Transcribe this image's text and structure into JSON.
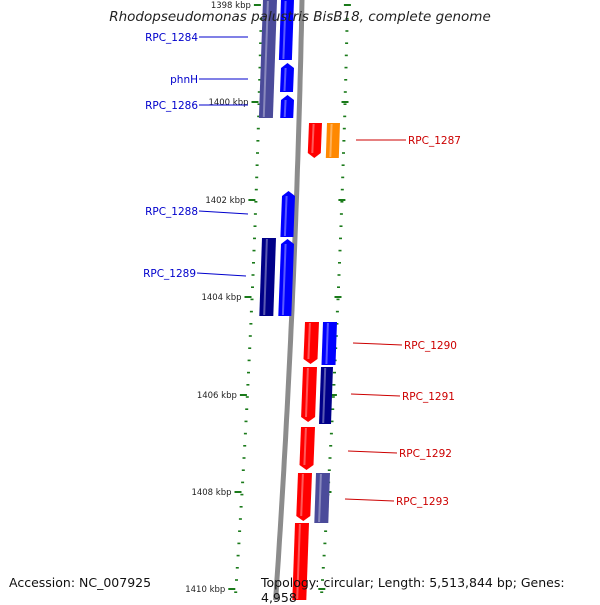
{
  "title": "Rhodopseudomonas palustris BisB18, complete genome",
  "footer": {
    "accession": "Accession: NC_007925",
    "topology": "Topology: circular; Length: 5,513,844 bp; Genes: 4,958"
  },
  "scale_labels": [
    "1398 kbp",
    "1400 kbp",
    "1402 kbp",
    "1404 kbp",
    "1406 kbp",
    "1408 kbp",
    "1410 kbp"
  ],
  "gene_labels": [
    {
      "text": "RPC_1284",
      "color": "#0000cc"
    },
    {
      "text": "phnH",
      "color": "#0000cc"
    },
    {
      "text": "RPC_1286",
      "color": "#0000cc"
    },
    {
      "text": "RPC_1287",
      "color": "#cc0000"
    },
    {
      "text": "RPC_1288",
      "color": "#0000cc"
    },
    {
      "text": "RPC_1289",
      "color": "#0000cc"
    },
    {
      "text": "RPC_1290",
      "color": "#cc0000"
    },
    {
      "text": "RPC_1291",
      "color": "#cc0000"
    },
    {
      "text": "RPC_1292",
      "color": "#cc0000"
    },
    {
      "text": "RPC_1293",
      "color": "#cc0000"
    }
  ],
  "colors": {
    "forward_gene": "#0000ff",
    "reverse_gene": "#ff0000",
    "orange_gene": "#ff8800",
    "slate_gene": "#4b4b9a",
    "navy_gene": "#000088",
    "backbone": "#8c8c8c",
    "tick": "#1a7a1a"
  }
}
